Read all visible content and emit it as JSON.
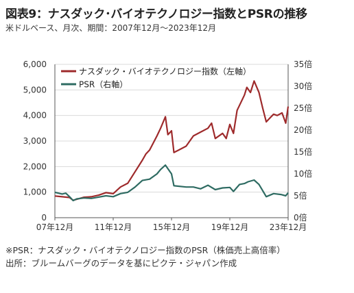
{
  "header": {
    "title": "図表9：ナスダック･バイオテクノロジー指数とPSRの推移",
    "subtitle": "米ドルベース、月次、期間：2007年12月～2023年12月"
  },
  "notes": {
    "note1": "※PSR：ナスダック・バイオテクノロジー指数のPSR（株価売上高倍率）",
    "note2": "出所：ブルームバーグのデータを基にピクテ・ジャパン作成"
  },
  "colors": {
    "index_line": "#9e2a2b",
    "psr_line": "#2e6b62",
    "grid": "#d9d9d9",
    "axis": "#555555"
  },
  "chart_data": {
    "type": "line",
    "x_range": [
      "2007-12",
      "2023-12"
    ],
    "x_ticks": [
      {
        "date": "2007-12",
        "label": "07年12月"
      },
      {
        "date": "2011-12",
        "label": "11年12月"
      },
      {
        "date": "2015-12",
        "label": "15年12月"
      },
      {
        "date": "2019-12",
        "label": "19年12月"
      },
      {
        "date": "2023-12",
        "label": "23年12月"
      }
    ],
    "y_left": {
      "ylim": [
        0,
        6000
      ],
      "ticks": [
        0,
        1000,
        2000,
        3000,
        4000,
        5000,
        6000
      ],
      "tick_labels": [
        "0",
        "1,000",
        "2,000",
        "3,000",
        "4,000",
        "5,000",
        "6,000"
      ]
    },
    "y_right": {
      "ylim": [
        0,
        35
      ],
      "ticks": [
        0,
        5,
        10,
        15,
        20,
        25,
        30,
        35
      ],
      "tick_labels": [
        "0倍",
        "5倍",
        "10倍",
        "15倍",
        "20倍",
        "25倍",
        "30倍",
        "35倍"
      ]
    },
    "grid": "horizontal",
    "legend_position": "top-left",
    "series": [
      {
        "name": "ナスダック・バイオテクノロジー指数（左軸）",
        "axis": "left",
        "color": "#9e2a2b",
        "points": [
          [
            "2007-12",
            850
          ],
          [
            "2008-06",
            820
          ],
          [
            "2008-12",
            790
          ],
          [
            "2009-03",
            680
          ],
          [
            "2009-06",
            720
          ],
          [
            "2009-12",
            800
          ],
          [
            "2010-06",
            820
          ],
          [
            "2010-12",
            880
          ],
          [
            "2011-06",
            980
          ],
          [
            "2011-12",
            940
          ],
          [
            "2012-06",
            1200
          ],
          [
            "2012-12",
            1350
          ],
          [
            "2013-06",
            1800
          ],
          [
            "2013-12",
            2250
          ],
          [
            "2014-03",
            2500
          ],
          [
            "2014-06",
            2650
          ],
          [
            "2014-12",
            3200
          ],
          [
            "2015-03",
            3500
          ],
          [
            "2015-07",
            3950
          ],
          [
            "2015-09",
            3250
          ],
          [
            "2015-12",
            3400
          ],
          [
            "2016-02",
            2550
          ],
          [
            "2016-06",
            2650
          ],
          [
            "2016-12",
            2800
          ],
          [
            "2017-06",
            3200
          ],
          [
            "2017-12",
            3350
          ],
          [
            "2018-06",
            3500
          ],
          [
            "2018-09",
            3700
          ],
          [
            "2018-12",
            3100
          ],
          [
            "2019-06",
            3300
          ],
          [
            "2019-09",
            3100
          ],
          [
            "2019-12",
            3650
          ],
          [
            "2020-03",
            3300
          ],
          [
            "2020-06",
            4200
          ],
          [
            "2020-08",
            4400
          ],
          [
            "2020-12",
            4800
          ],
          [
            "2021-02",
            5100
          ],
          [
            "2021-05",
            4900
          ],
          [
            "2021-08",
            5350
          ],
          [
            "2021-12",
            4900
          ],
          [
            "2022-03",
            4300
          ],
          [
            "2022-06",
            3750
          ],
          [
            "2022-09",
            3900
          ],
          [
            "2022-12",
            4050
          ],
          [
            "2023-03",
            4000
          ],
          [
            "2023-07",
            4100
          ],
          [
            "2023-10",
            3700
          ],
          [
            "2023-12",
            4350
          ]
        ]
      },
      {
        "name": "PSR（右軸）",
        "axis": "right",
        "color": "#2e6b62",
        "points": [
          [
            "2007-12",
            5.8
          ],
          [
            "2008-06",
            5.4
          ],
          [
            "2008-09",
            5.6
          ],
          [
            "2008-12",
            4.8
          ],
          [
            "2009-03",
            3.9
          ],
          [
            "2009-06",
            4.3
          ],
          [
            "2009-12",
            4.5
          ],
          [
            "2010-06",
            4.4
          ],
          [
            "2010-12",
            4.7
          ],
          [
            "2011-06",
            5.0
          ],
          [
            "2011-12",
            4.8
          ],
          [
            "2012-06",
            5.5
          ],
          [
            "2012-12",
            5.8
          ],
          [
            "2013-06",
            7.0
          ],
          [
            "2013-12",
            8.5
          ],
          [
            "2014-06",
            8.8
          ],
          [
            "2014-12",
            10.0
          ],
          [
            "2015-03",
            11.0
          ],
          [
            "2015-07",
            12.0
          ],
          [
            "2015-12",
            10.0
          ],
          [
            "2016-02",
            7.3
          ],
          [
            "2016-12",
            7.0
          ],
          [
            "2017-06",
            7.0
          ],
          [
            "2017-12",
            6.6
          ],
          [
            "2018-06",
            7.4
          ],
          [
            "2018-12",
            6.4
          ],
          [
            "2019-06",
            6.8
          ],
          [
            "2019-12",
            6.9
          ],
          [
            "2020-03",
            6.0
          ],
          [
            "2020-08",
            7.6
          ],
          [
            "2020-12",
            7.8
          ],
          [
            "2021-03",
            8.2
          ],
          [
            "2021-08",
            8.6
          ],
          [
            "2021-12",
            7.6
          ],
          [
            "2022-06",
            4.8
          ],
          [
            "2022-12",
            5.5
          ],
          [
            "2023-06",
            5.3
          ],
          [
            "2023-10",
            5.0
          ],
          [
            "2023-12",
            5.7
          ]
        ]
      }
    ]
  }
}
